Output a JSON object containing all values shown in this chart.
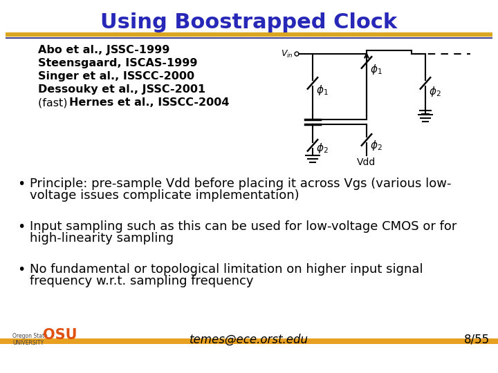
{
  "title": "Using Boostrapped Clock",
  "title_color": "#2828B8",
  "title_fontsize": 22,
  "bg_color": "#FFFFFF",
  "sep_color_gold": "#DAA520",
  "sep_color_navy": "#1A1A80",
  "ref_lines": [
    {
      "prefix": "",
      "bold": "Abo et al., JSSC-1999"
    },
    {
      "prefix": "",
      "bold": "Steensgaard, ISCAS-1999"
    },
    {
      "prefix": "",
      "bold": "Singer et al., ISSCC-2000"
    },
    {
      "prefix": "",
      "bold": "Dessouky et al., JSSC-2001"
    },
    {
      "prefix": "(fast) ",
      "bold": "Hernes et al., ISSCC-2004"
    }
  ],
  "ref_fontsize": 11.5,
  "bullets": [
    [
      "Principle: pre-sample Vdd before placing it across Vgs (various low-",
      "voltage issues complicate implementation)"
    ],
    [
      "Input sampling such as this can be used for low-voltage CMOS or for",
      "high-linearity sampling"
    ],
    [
      "No fundamental or topological limitation on higher input signal",
      "frequency w.r.t. sampling frequency"
    ]
  ],
  "bullet_fontsize": 13,
  "footer_email": "temes@ece.orst.edu",
  "footer_page": "8/55",
  "footer_bar_color": "#E8A020",
  "footer_fontsize": 12
}
